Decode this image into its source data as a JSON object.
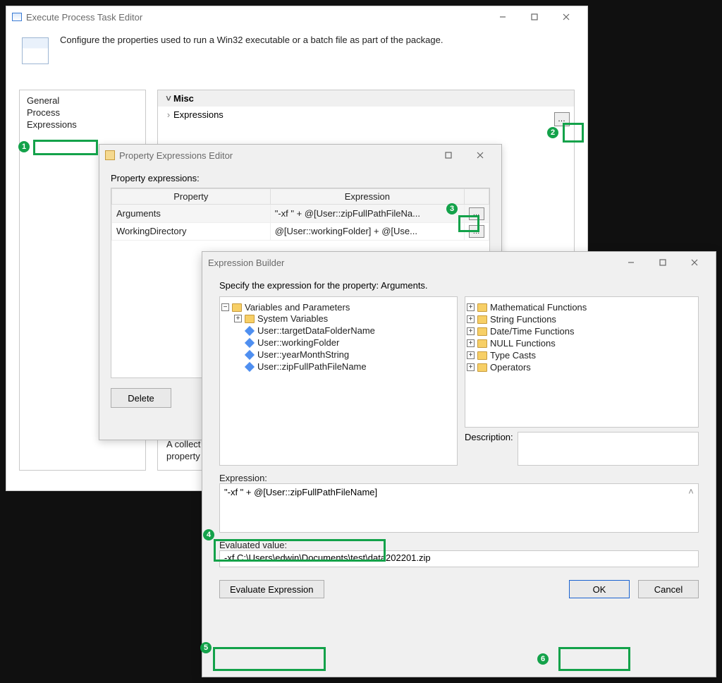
{
  "general": {
    "collection_hint": "A collection of property…"
  },
  "win1": {
    "title": "Execute Process Task Editor",
    "description": "Configure the properties used to run a Win32 executable or a batch file as part of the package.",
    "sidebar": {
      "items": [
        "General",
        "Process",
        "Expressions"
      ],
      "selected_index": 2
    },
    "grid": {
      "section": "Misc",
      "expressions_label": "Expressions"
    }
  },
  "win2": {
    "title": "Property Expressions Editor",
    "label": "Property expressions:",
    "columns": [
      "Property",
      "Expression"
    ],
    "rows": [
      {
        "prop": "Arguments",
        "expr": "\"-xf \" +  @[User::zipFullPathFileNa..."
      },
      {
        "prop": "WorkingDirectory",
        "expr": "@[User::workingFolder] +  @[Use..."
      }
    ],
    "delete_label": "Delete"
  },
  "win3": {
    "title": "Expression Builder",
    "prompt": "Specify the expression for the property: Arguments.",
    "left_tree": {
      "root": "Variables and Parameters",
      "sys": "System Variables",
      "vars": [
        "User::targetDataFolderName",
        "User::workingFolder",
        "User::yearMonthString",
        "User::zipFullPathFileName"
      ]
    },
    "right_tree": [
      "Mathematical Functions",
      "String Functions",
      "Date/Time Functions",
      "NULL Functions",
      "Type Casts",
      "Operators"
    ],
    "description_label": "Description:",
    "expression_label": "Expression:",
    "expression_value": "\"-xf \" + @[User::zipFullPathFileName]",
    "evaluated_label": "Evaluated value:",
    "evaluated_value": "-xf C:\\Users\\edwin\\Documents\\test\\data202201.zip",
    "evaluate_btn": "Evaluate Expression",
    "ok": "OK",
    "cancel": "Cancel"
  },
  "callouts": {
    "c1": "1",
    "c2": "2",
    "c3": "3",
    "c4": "4",
    "c5": "5",
    "c6": "6"
  }
}
